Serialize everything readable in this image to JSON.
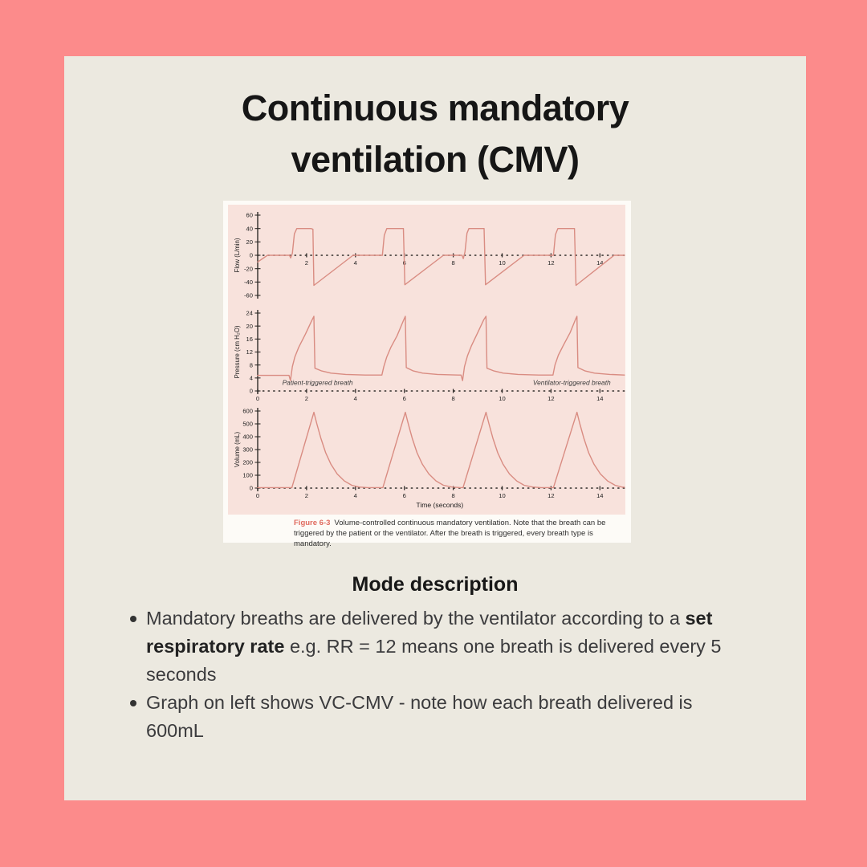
{
  "page": {
    "background": "#fc8b8b",
    "card_background": "#ece9e0"
  },
  "title": {
    "line1": "Continuous mandatory",
    "line2": "ventilation (CMV)"
  },
  "figure": {
    "background": "#fdfbf7",
    "panel_background": "#f8e2dc",
    "caption": {
      "label": "Figure 6-3",
      "label_color": "#e06a5e",
      "text": "Volume-controlled continuous mandatory ventilation. Note that the breath can be triggered by the patient or the ventilator. After the breath is triggered, every breath type is mandatory."
    }
  },
  "chart_data": [
    {
      "type": "line",
      "id": "flow",
      "title": "Flow waveform",
      "ylabel": "Flow (L/min)",
      "ylim": [
        -60,
        60
      ],
      "yticks": [
        60,
        40,
        20,
        0,
        -20,
        -40,
        -60
      ],
      "xlim": [
        0,
        15
      ],
      "xticks": [
        2,
        4,
        6,
        8,
        10,
        12,
        14
      ],
      "x_axis_at": 0,
      "grid": "off",
      "line_color": "#d98c82",
      "axis_color": "#2e2b28",
      "series": [
        [
          0,
          -10
        ],
        [
          0.4,
          0
        ],
        [
          1.3,
          0
        ],
        [
          1.35,
          -4
        ],
        [
          1.42,
          3
        ],
        [
          1.5,
          32
        ],
        [
          1.6,
          40
        ],
        [
          2.18,
          40
        ],
        [
          2.26,
          39
        ],
        [
          2.3,
          -45
        ],
        [
          3.9,
          0
        ],
        [
          5.1,
          0
        ],
        [
          5.18,
          30
        ],
        [
          5.28,
          40
        ],
        [
          5.96,
          40
        ],
        [
          6.02,
          -44
        ],
        [
          7.6,
          0
        ],
        [
          8.36,
          0
        ],
        [
          8.41,
          -5
        ],
        [
          8.48,
          5
        ],
        [
          8.56,
          33
        ],
        [
          8.64,
          40
        ],
        [
          9.26,
          40
        ],
        [
          9.32,
          -44
        ],
        [
          10.9,
          0
        ],
        [
          12.1,
          0
        ],
        [
          12.18,
          31
        ],
        [
          12.28,
          40
        ],
        [
          12.96,
          40
        ],
        [
          13.02,
          -45
        ],
        [
          14.58,
          0
        ],
        [
          15,
          0
        ]
      ]
    },
    {
      "type": "line",
      "id": "pressure",
      "title": "Pressure waveform",
      "ylabel": "Pressure (cm H₂O)",
      "ylim": [
        0,
        24
      ],
      "yticks": [
        24,
        20,
        16,
        12,
        8,
        4,
        0
      ],
      "xlim": [
        0,
        15
      ],
      "xticks": [
        0,
        2,
        4,
        6,
        8,
        10,
        12,
        14
      ],
      "x_axis_at": 0,
      "grid": "off",
      "line_color": "#d98c82",
      "axis_color": "#2e2b28",
      "annotations": [
        {
          "text": "Patient-triggered breath",
          "x": 2.45,
          "y": 1.8
        },
        {
          "text": "Ventilator-triggered breath",
          "x": 12.85,
          "y": 1.8
        }
      ],
      "series": [
        [
          0,
          4.8
        ],
        [
          1.28,
          4.8
        ],
        [
          1.34,
          3.2
        ],
        [
          1.42,
          7.5
        ],
        [
          1.52,
          10.5
        ],
        [
          1.68,
          13.5
        ],
        [
          1.95,
          17.5
        ],
        [
          2.2,
          21.5
        ],
        [
          2.3,
          23
        ],
        [
          2.34,
          7
        ],
        [
          2.6,
          6.2
        ],
        [
          3.0,
          5.5
        ],
        [
          3.6,
          5.1
        ],
        [
          4.4,
          4.9
        ],
        [
          5.08,
          4.9
        ],
        [
          5.16,
          7.5
        ],
        [
          5.28,
          10.5
        ],
        [
          5.45,
          13.5
        ],
        [
          5.7,
          17
        ],
        [
          5.95,
          21.5
        ],
        [
          6.04,
          23
        ],
        [
          6.08,
          7.2
        ],
        [
          6.35,
          6.2
        ],
        [
          6.75,
          5.5
        ],
        [
          7.35,
          5.1
        ],
        [
          8.2,
          4.9
        ],
        [
          8.32,
          4.9
        ],
        [
          8.38,
          3.2
        ],
        [
          8.46,
          7.5
        ],
        [
          8.58,
          10.8
        ],
        [
          8.75,
          14
        ],
        [
          9.0,
          18
        ],
        [
          9.25,
          22
        ],
        [
          9.34,
          23
        ],
        [
          9.38,
          7
        ],
        [
          9.65,
          6.2
        ],
        [
          10.05,
          5.5
        ],
        [
          10.65,
          5.1
        ],
        [
          11.5,
          4.9
        ],
        [
          12.08,
          4.9
        ],
        [
          12.16,
          8
        ],
        [
          12.3,
          11
        ],
        [
          12.5,
          14
        ],
        [
          12.78,
          18
        ],
        [
          13.0,
          22
        ],
        [
          13.06,
          23
        ],
        [
          13.1,
          7.2
        ],
        [
          13.38,
          6.2
        ],
        [
          13.78,
          5.5
        ],
        [
          14.4,
          5.1
        ],
        [
          15,
          4.9
        ]
      ]
    },
    {
      "type": "line",
      "id": "volume",
      "title": "Volume waveform",
      "ylabel": "Volume (mL)",
      "ylim": [
        0,
        600
      ],
      "yticks": [
        600,
        500,
        400,
        300,
        200,
        100,
        0
      ],
      "xlim": [
        0,
        15
      ],
      "xticks": [
        0,
        2,
        4,
        6,
        8,
        10,
        12,
        14
      ],
      "x_axis_at": 0,
      "xlabel": "Time (seconds)",
      "grid": "off",
      "line_color": "#d98c82",
      "axis_color": "#2e2b28",
      "series": [
        [
          0,
          4
        ],
        [
          1.4,
          4
        ],
        [
          2.3,
          590
        ],
        [
          2.42,
          500
        ],
        [
          2.58,
          390
        ],
        [
          2.78,
          275
        ],
        [
          3.0,
          185
        ],
        [
          3.25,
          110
        ],
        [
          3.55,
          55
        ],
        [
          3.85,
          22
        ],
        [
          4.15,
          8
        ],
        [
          4.5,
          4
        ],
        [
          5.12,
          4
        ],
        [
          6.04,
          590
        ],
        [
          6.16,
          500
        ],
        [
          6.32,
          390
        ],
        [
          6.52,
          275
        ],
        [
          6.74,
          185
        ],
        [
          7.0,
          110
        ],
        [
          7.3,
          55
        ],
        [
          7.6,
          22
        ],
        [
          7.95,
          8
        ],
        [
          8.3,
          4
        ],
        [
          8.4,
          4
        ],
        [
          9.34,
          590
        ],
        [
          9.46,
          500
        ],
        [
          9.62,
          390
        ],
        [
          9.82,
          275
        ],
        [
          10.04,
          185
        ],
        [
          10.3,
          110
        ],
        [
          10.6,
          55
        ],
        [
          10.9,
          22
        ],
        [
          11.25,
          8
        ],
        [
          11.6,
          4
        ],
        [
          12.1,
          4
        ],
        [
          13.06,
          590
        ],
        [
          13.18,
          500
        ],
        [
          13.34,
          390
        ],
        [
          13.54,
          275
        ],
        [
          13.76,
          185
        ],
        [
          14.02,
          110
        ],
        [
          14.32,
          55
        ],
        [
          14.62,
          22
        ],
        [
          14.9,
          8
        ],
        [
          15,
          6
        ]
      ]
    }
  ],
  "mode": {
    "heading": "Mode description",
    "bullets": [
      [
        {
          "t": "Mandatory breaths are delivered by the ventilator according to a "
        },
        {
          "t": "set respiratory rate",
          "b": true
        },
        {
          "t": " e.g. RR = 12 means one breath is delivered every 5 seconds"
        }
      ],
      [
        {
          "t": "Graph on left shows VC-CMV - note how each breath delivered is 600mL"
        }
      ]
    ]
  }
}
